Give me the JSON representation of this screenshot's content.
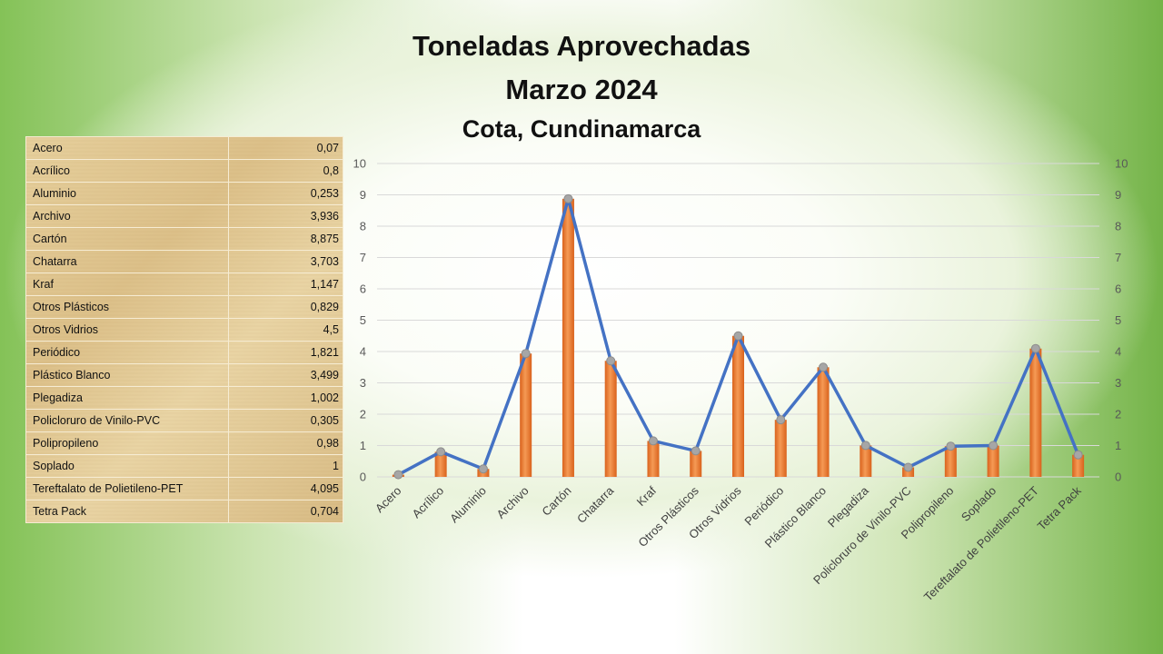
{
  "chart_data": {
    "type": "bar+line",
    "title": [
      "Toneladas Aprovechadas",
      "Marzo 2024"
    ],
    "subtitle": "Cota, Cundinamarca",
    "xlabel": "",
    "ylabel": "",
    "ylim": [
      0,
      10
    ],
    "yticks": [
      0,
      1,
      2,
      3,
      4,
      5,
      6,
      7,
      8,
      9,
      10
    ],
    "secondary_ylim": [
      0,
      10
    ],
    "grid": true,
    "legend": "none",
    "categories": [
      "Acero",
      "Acrílico",
      "Aluminio",
      "Archivo",
      "Cartón",
      "Chatarra",
      "Kraf",
      "Otros Plásticos",
      "Otros Vidrios",
      "Periódico",
      "Plástico Blanco",
      "Plegadiza",
      "Policloruro de Vinilo-PVC",
      "Polipropileno",
      "Soplado",
      "Tereftalato de Polietileno-PET",
      "Tetra Pack"
    ],
    "values": [
      0.07,
      0.8,
      0.253,
      3.936,
      8.875,
      3.703,
      1.147,
      0.829,
      4.5,
      1.821,
      3.499,
      1.002,
      0.305,
      0.98,
      1,
      4.095,
      0.704
    ],
    "colors": {
      "bar": "#ed7d31",
      "line": "#4472c4",
      "marker": "#a6a6a6"
    }
  },
  "table": {
    "rows": [
      {
        "name": "Acero",
        "value": "0,07"
      },
      {
        "name": "Acrílico",
        "value": "0,8"
      },
      {
        "name": "Aluminio",
        "value": "0,253"
      },
      {
        "name": "Archivo",
        "value": "3,936"
      },
      {
        "name": "Cartón",
        "value": "8,875"
      },
      {
        "name": "Chatarra",
        "value": "3,703"
      },
      {
        "name": "Kraf",
        "value": "1,147"
      },
      {
        "name": "Otros Plásticos",
        "value": "0,829"
      },
      {
        "name": "Otros Vidrios",
        "value": "4,5"
      },
      {
        "name": "Periódico",
        "value": "1,821"
      },
      {
        "name": "Plástico Blanco",
        "value": "3,499"
      },
      {
        "name": "Plegadiza",
        "value": "1,002"
      },
      {
        "name": "Policloruro de Vinilo-PVC",
        "value": "0,305"
      },
      {
        "name": "Polipropileno",
        "value": "0,98"
      },
      {
        "name": "Soplado",
        "value": "1"
      },
      {
        "name": "Tereftalato de Polietileno-PET",
        "value": "4,095"
      },
      {
        "name": "Tetra Pack",
        "value": "0,704"
      }
    ]
  }
}
